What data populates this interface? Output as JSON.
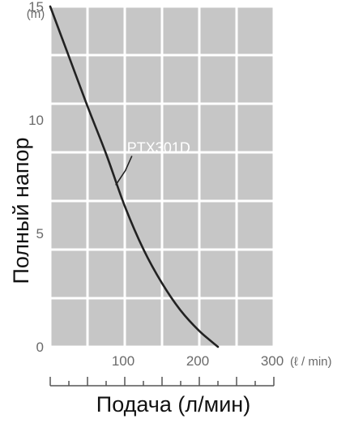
{
  "chart_data": {
    "type": "line",
    "xlabel": "Подача (л/мин)",
    "ylabel": "Полный напор",
    "x_unit": "(ℓ / min)",
    "y_unit": "(m)",
    "xlim": [
      0,
      300
    ],
    "ylim": [
      0,
      15
    ],
    "x_ticks": [
      0,
      100,
      200,
      300
    ],
    "x_tick_labels": [
      "100",
      "200",
      "300"
    ],
    "y_ticks": [
      0,
      5,
      10,
      15
    ],
    "y_tick_labels": [
      "0",
      "5",
      "10",
      "15"
    ],
    "grid": true,
    "series": [
      {
        "name": "PTX301D",
        "color": "#222222",
        "x": [
          0,
          25,
          50,
          75,
          100,
          125,
          150,
          175,
          200,
          225
        ],
        "y": [
          15,
          12.8,
          10.6,
          8.5,
          6.2,
          4.3,
          2.8,
          1.6,
          0.7,
          0
        ]
      }
    ],
    "annotation": {
      "text": "PTX301D",
      "points_to": {
        "x": 90,
        "y": 7.2
      }
    },
    "colors": {
      "plot_background": "#c6c6c6",
      "grid": "#ffffff",
      "page_background": "#ffffff"
    }
  }
}
